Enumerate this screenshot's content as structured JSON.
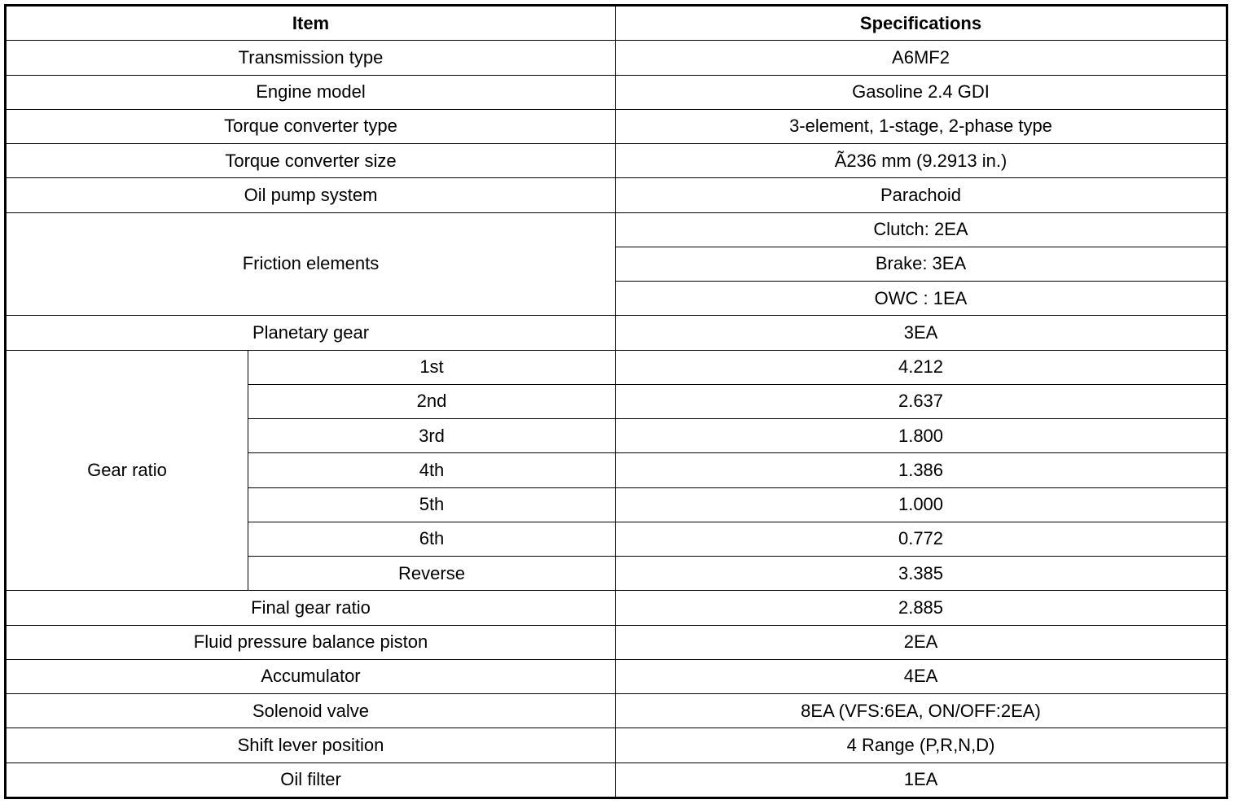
{
  "header": {
    "item": "Item",
    "specifications": "Specifications"
  },
  "rows": {
    "transmission_type": {
      "item": "Transmission type",
      "spec": "A6MF2"
    },
    "engine_model": {
      "item": "Engine model",
      "spec": "Gasoline 2.4 GDI"
    },
    "tc_type": {
      "item": "Torque converter type",
      "spec": "3-element, 1-stage, 2-phase type"
    },
    "tc_size": {
      "item": "Torque converter size",
      "spec": "Ã236 mm (9.2913 in.)"
    },
    "oil_pump": {
      "item": "Oil pump system",
      "spec": "Parachoid"
    },
    "friction": {
      "item": "Friction elements",
      "specs": [
        "Clutch: 2EA",
        "Brake: 3EA",
        "OWC : 1EA"
      ]
    },
    "planetary": {
      "item": "Planetary gear",
      "spec": "3EA"
    },
    "gear_ratio": {
      "item": "Gear ratio",
      "gears": [
        {
          "gear": "1st",
          "ratio": "4.212"
        },
        {
          "gear": "2nd",
          "ratio": "2.637"
        },
        {
          "gear": "3rd",
          "ratio": "1.800"
        },
        {
          "gear": "4th",
          "ratio": "1.386"
        },
        {
          "gear": "5th",
          "ratio": "1.000"
        },
        {
          "gear": "6th",
          "ratio": "0.772"
        },
        {
          "gear": "Reverse",
          "ratio": "3.385"
        }
      ]
    },
    "final_gear": {
      "item": "Final gear ratio",
      "spec": "2.885"
    },
    "fluid_piston": {
      "item": "Fluid pressure balance piston",
      "spec": "2EA"
    },
    "accumulator": {
      "item": "Accumulator",
      "spec": "4EA"
    },
    "solenoid": {
      "item": "Solenoid valve",
      "spec": "8EA (VFS:6EA, ON/OFF:2EA)"
    },
    "shift_lever": {
      "item": "Shift lever position",
      "spec": "4 Range (P,R,N,D)"
    },
    "oil_filter": {
      "item": "Oil filter",
      "spec": "1EA"
    }
  }
}
